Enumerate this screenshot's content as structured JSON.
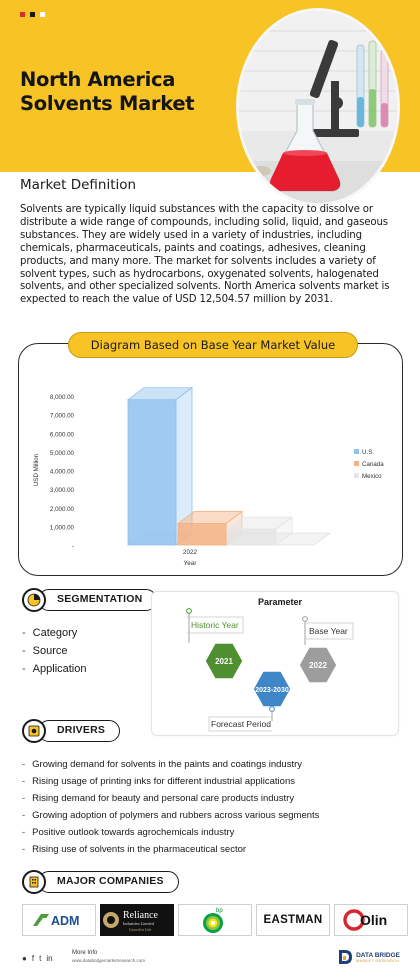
{
  "header": {
    "title_line1": "North America",
    "title_line2": "Solvents Market",
    "dot_colors": [
      "#d9302b",
      "#1a1a1a",
      "#ffffff"
    ],
    "accent": "#f7c325"
  },
  "definition": {
    "heading": "Market Definition",
    "text": "Solvents are typically liquid substances with the capacity to dissolve or distribute a wide range of compounds, including solid, liquid, and gaseous substances. They are widely used in a variety of industries, including chemicals, pharmaceuticals, paints and coatings, adhesives, cleaning products, and many more. The market for solvents includes a variety of solvent types, such as hydrocarbons, oxygenated solvents, halogenated solvents, and other specialized solvents. North America solvents market is expected to reach the value of USD 12,504.57 million by 2031."
  },
  "chart_data": {
    "type": "bar",
    "title": "Diagram Based on Base Year Market Value",
    "categories": [
      "2022"
    ],
    "series": [
      {
        "name": "U.S.",
        "values": [
          7800
        ],
        "color": "#8fc1ee"
      },
      {
        "name": "Canada",
        "values": [
          1150
        ],
        "color": "#f4b183"
      },
      {
        "name": "Mexico",
        "values": [
          850
        ],
        "color": "#e4e4e4"
      }
    ],
    "xlabel": "Year",
    "ylabel": "USD Million",
    "yticks": [
      "-",
      "1,000.00",
      "2,000.00",
      "3,000.00",
      "4,000.00",
      "5,000.00",
      "6,000.00",
      "7,000.00",
      "8,000.00"
    ],
    "ylim": [
      0,
      8000
    ],
    "legend_position": "right"
  },
  "segmentation": {
    "label": "SEGMENTATION",
    "items": [
      "Category",
      "Source",
      "Application"
    ]
  },
  "parameter": {
    "title": "Parameter",
    "historic_label": "Historic Year",
    "historic_value": "2021",
    "forecast_label": "Forecast Period",
    "forecast_value": "2023-2030",
    "base_label": "Base Year",
    "base_value": "2022",
    "colors": {
      "historic": "#4e8f2f",
      "forecast": "#3f86c9",
      "base": "#9d9d9d"
    }
  },
  "drivers": {
    "label": "DRIVERS",
    "items": [
      "Growing demand for solvents in the paints and coatings industry",
      "Rising usage of printing inks for different industrial applications",
      "Rising demand for beauty and personal care products industry",
      "Growing adoption of polymers and rubbers across various segments",
      "Positive outlook towards agrochemicals industry",
      "Rising use of solvents in the pharmaceutical sector"
    ]
  },
  "companies": {
    "label": "MAJOR COMPANIES",
    "logos": [
      {
        "name": "ADM",
        "icon": "adm-logo"
      },
      {
        "name": "Reliance",
        "sub1": "Industries Limited",
        "sub2": "Growth is Life",
        "icon": "reliance-logo"
      },
      {
        "name": "bp",
        "icon": "bp-logo"
      },
      {
        "name": "EASTMAN",
        "icon": "eastman-logo"
      },
      {
        "name": "Olin",
        "icon": "olin-logo"
      }
    ]
  },
  "footer": {
    "more_info": "More Info",
    "url": "www.databridgemarketresearch.com",
    "brand_line1": "DATA BRIDGE",
    "brand_line2": "MARKET RESEARCH"
  }
}
